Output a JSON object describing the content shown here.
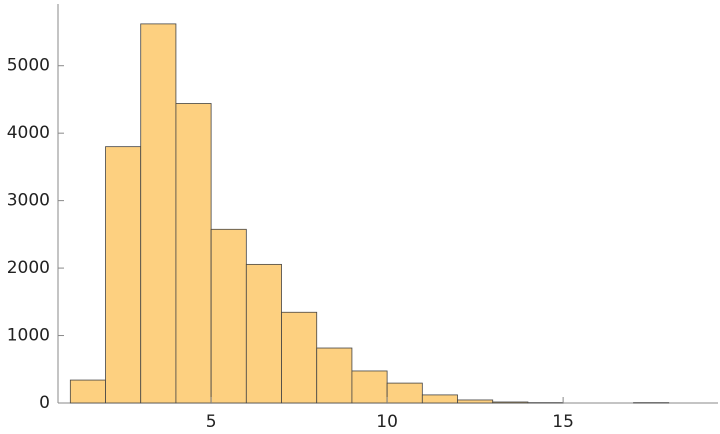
{
  "chart_data": {
    "type": "histogram",
    "bins": [
      1,
      2,
      3,
      4,
      5,
      6,
      7,
      8,
      9,
      10,
      11,
      12,
      13,
      14,
      15,
      16,
      17,
      18
    ],
    "values": [
      340,
      3800,
      5620,
      4440,
      2575,
      2055,
      1345,
      815,
      475,
      295,
      120,
      45,
      15,
      5,
      0,
      0,
      5
    ],
    "color": "#fdd080",
    "xlim": [
      0.65,
      19.4
    ],
    "xticks": [
      5,
      10,
      15
    ],
    "ylim": [
      0,
      5900
    ],
    "yticks": [
      0,
      1000,
      2000,
      3000,
      4000,
      5000
    ],
    "grid": false
  }
}
